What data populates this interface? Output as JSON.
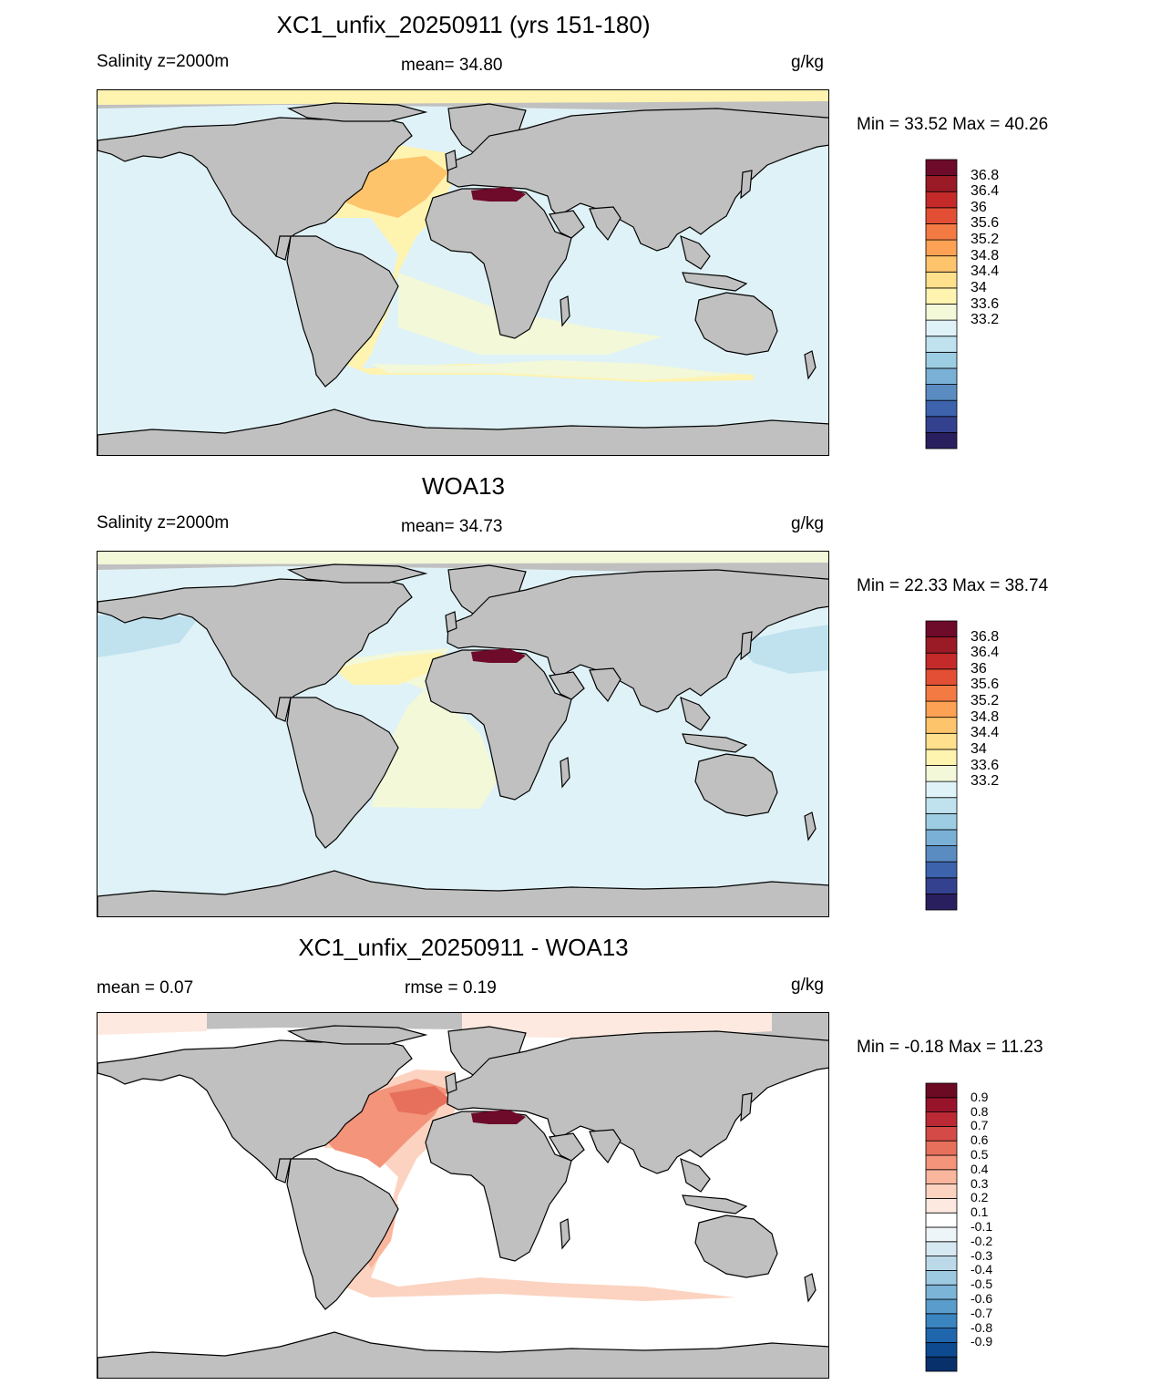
{
  "panels": [
    {
      "title": "XC1_unfix_20250911 (yrs 151-180)",
      "left_label": "Salinity z=2000m",
      "center_label": "mean=  34.80",
      "units": "g/kg",
      "minmax": "Min =  33.52 Max =  40.26",
      "colorbar": {
        "colors": [
          "#2a1f5e",
          "#33418f",
          "#3d63ad",
          "#5a8cc2",
          "#7ab0d6",
          "#9ccde3",
          "#bfe2ee",
          "#dff2f7",
          "#f2f8d8",
          "#fff3b0",
          "#ffe08c",
          "#fec46b",
          "#fda154",
          "#f47a44",
          "#e34f35",
          "#c42a2a",
          "#9a1a26",
          "#6e0a2a"
        ],
        "labels": [
          "36.8",
          "36.4",
          "36",
          "35.6",
          "35.2",
          "34.8",
          "34.4",
          "34",
          "33.6",
          "33.2"
        ]
      }
    },
    {
      "title": "WOA13",
      "left_label": "Salinity z=2000m",
      "center_label": "mean=  34.73",
      "units": "g/kg",
      "minmax": "Min =  22.33 Max =  38.74",
      "colorbar": {
        "colors": [
          "#2a1f5e",
          "#33418f",
          "#3d63ad",
          "#5a8cc2",
          "#7ab0d6",
          "#9ccde3",
          "#bfe2ee",
          "#dff2f7",
          "#f2f8d8",
          "#fff3b0",
          "#ffe08c",
          "#fec46b",
          "#fda154",
          "#f47a44",
          "#e34f35",
          "#c42a2a",
          "#9a1a26",
          "#6e0a2a"
        ],
        "labels": [
          "36.8",
          "36.4",
          "36",
          "35.6",
          "35.2",
          "34.8",
          "34.4",
          "34",
          "33.6",
          "33.2"
        ]
      }
    },
    {
      "title": "XC1_unfix_20250911 - WOA13",
      "left_label": "mean =    0.07",
      "center_label": "rmse =    0.19",
      "units": "g/kg",
      "minmax": "Min =  -0.18 Max =  11.23",
      "colorbar": {
        "colors": [
          "#08306b",
          "#0d4a8f",
          "#1f66ad",
          "#3a84c0",
          "#5a9ccc",
          "#7cb4d8",
          "#9ecae1",
          "#bcd9ea",
          "#d6e8f1",
          "#eef5f9",
          "#ffffff",
          "#fde9df",
          "#fcd3c0",
          "#f9b69d",
          "#f3947b",
          "#e6705c",
          "#d44a46",
          "#bb2a34",
          "#98142a",
          "#6b0a22"
        ],
        "labels": [
          "0.9",
          "0.8",
          "0.7",
          "0.6",
          "0.5",
          "0.4",
          "0.3",
          "0.2",
          "0.1",
          "-0.1",
          "-0.2",
          "-0.3",
          "-0.4",
          "-0.5",
          "-0.6",
          "-0.7",
          "-0.8",
          "-0.9"
        ]
      }
    }
  ],
  "colors": {
    "land": "#c0c0c0",
    "ocean_model": "#dff2f7",
    "ocean_obs": "#dff2f7",
    "ocean_diff": "#ffffff"
  }
}
